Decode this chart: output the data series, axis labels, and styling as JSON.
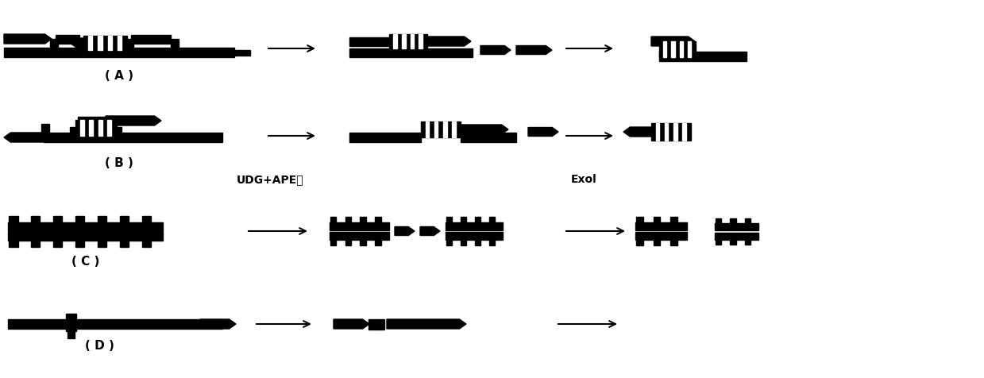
{
  "fig_width": 12.39,
  "fig_height": 4.76,
  "bg_color": "#ffffff",
  "fg_color": "#000000",
  "label_A": "( A )",
  "label_B": "( B )",
  "label_C": "( C )",
  "label_D": "( D )",
  "label_UDG": "UDG+APE酶",
  "label_Exol": "Exol",
  "font_label": 11,
  "font_enzyme": 10
}
